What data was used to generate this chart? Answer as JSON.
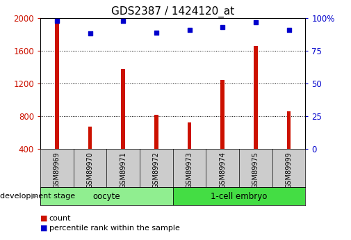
{
  "title": "GDS2387 / 1424120_at",
  "samples": [
    "GSM89969",
    "GSM89970",
    "GSM89971",
    "GSM89972",
    "GSM89973",
    "GSM89974",
    "GSM89975",
    "GSM89999"
  ],
  "counts": [
    1950,
    670,
    1380,
    820,
    720,
    1240,
    1660,
    860
  ],
  "percentiles": [
    98,
    88,
    98,
    89,
    91,
    93,
    97,
    91
  ],
  "groups": [
    {
      "label": "oocyte",
      "start": 0,
      "end": 4,
      "color": "#90ee90"
    },
    {
      "label": "1-cell embryo",
      "start": 4,
      "end": 8,
      "color": "#44dd44"
    }
  ],
  "ylim_left": [
    400,
    2000
  ],
  "ylim_right": [
    0,
    100
  ],
  "yticks_left": [
    400,
    800,
    1200,
    1600,
    2000
  ],
  "yticks_right": [
    0,
    25,
    50,
    75,
    100
  ],
  "yticklabels_right": [
    "0",
    "25",
    "50",
    "75",
    "100%"
  ],
  "bar_color": "#cc1100",
  "scatter_color": "#0000cc",
  "grid_color": "black",
  "tick_area_color": "#cccccc",
  "left_axis_color": "#cc1100",
  "right_axis_color": "#0000cc",
  "legend_count_color": "#cc1100",
  "legend_pct_color": "#0000cc",
  "xlabel_area": "development stage",
  "legend_count_label": "count",
  "legend_pct_label": "percentile rank within the sample",
  "title_fontsize": 11,
  "tick_fontsize": 8.5,
  "bar_width": 0.12
}
